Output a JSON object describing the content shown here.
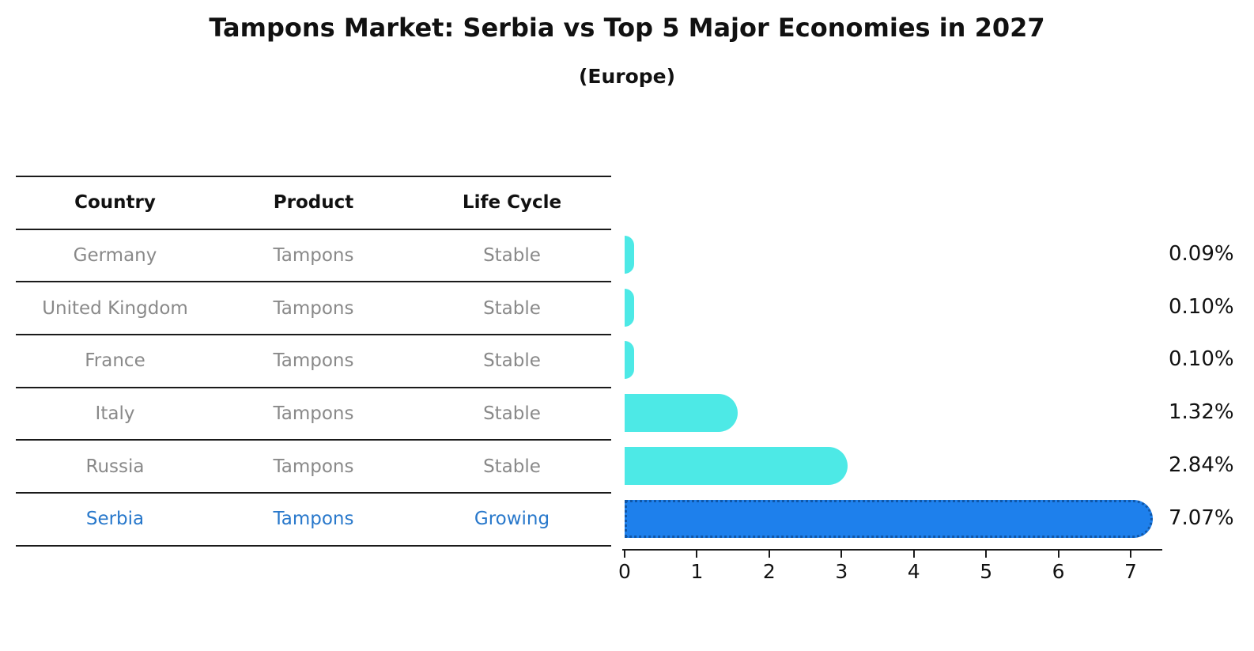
{
  "title": "Tampons Market: Serbia vs Top 5 Major Economies in 2027",
  "subtitle": "(Europe)",
  "table": {
    "headers": [
      "Country",
      "Product",
      "Life Cycle"
    ],
    "rows": [
      {
        "country": "Germany",
        "product": "Tampons",
        "life_cycle": "Stable",
        "highlight": false
      },
      {
        "country": "United Kingdom",
        "product": "Tampons",
        "life_cycle": "Stable",
        "highlight": false
      },
      {
        "country": "France",
        "product": "Tampons",
        "life_cycle": "Stable",
        "highlight": false
      },
      {
        "country": "Italy",
        "product": "Tampons",
        "life_cycle": "Stable",
        "highlight": false
      },
      {
        "country": "Russia",
        "product": "Tampons",
        "life_cycle": "Stable",
        "highlight": false
      },
      {
        "country": "Serbia",
        "product": "Tampons",
        "life_cycle": "Growing",
        "highlight": true
      }
    ]
  },
  "chart_data": {
    "type": "bar",
    "orientation": "horizontal",
    "title": "Tampons Market: Serbia vs Top 5 Major Economies in 2027",
    "subtitle": "(Europe)",
    "categories": [
      "Germany",
      "United Kingdom",
      "France",
      "Italy",
      "Russia",
      "Serbia"
    ],
    "values": [
      0.09,
      0.1,
      0.1,
      1.32,
      2.84,
      7.07
    ],
    "value_labels": [
      "0.09%",
      "0.10%",
      "0.10%",
      "1.32%",
      "2.84%",
      "7.07%"
    ],
    "highlight_category": "Serbia",
    "xlim": [
      0,
      7.5
    ],
    "x_ticks": [
      0,
      1,
      2,
      3,
      4,
      5,
      6,
      7
    ],
    "grid": false,
    "legend": false,
    "colors": {
      "bar_default": "#4de9e6",
      "bar_highlight": "#1e80ec",
      "bar_highlight_border": "#1057a8",
      "highlight_text": "#2878cb",
      "table_text": "#898989",
      "axis": "#1a1a1a"
    }
  }
}
